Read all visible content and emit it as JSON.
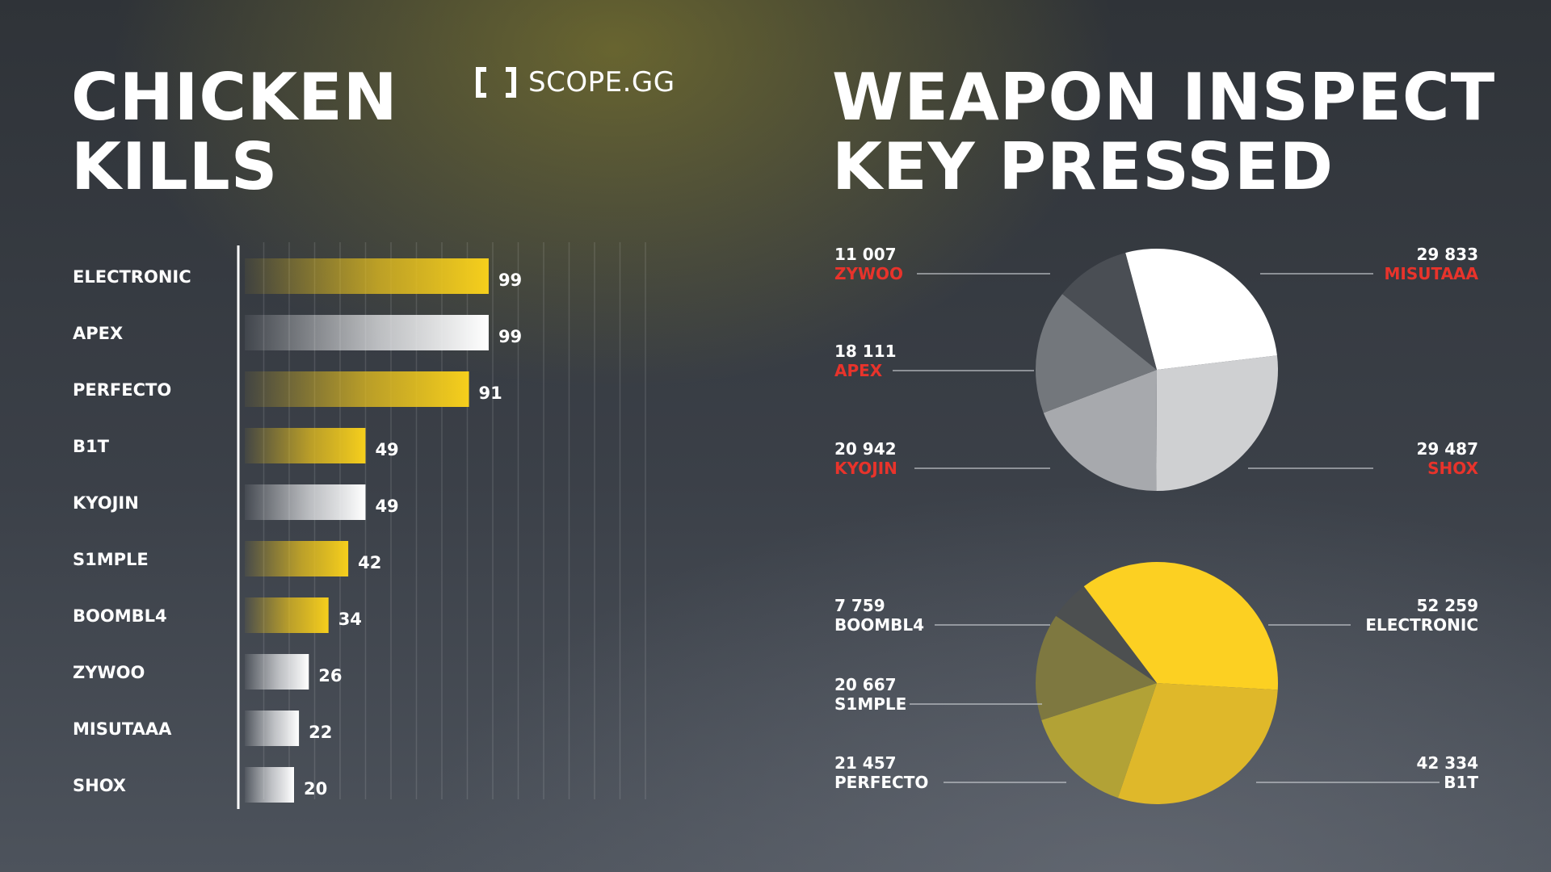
{
  "brand": {
    "name": "SCOPE.GG",
    "icon": "bracket-scope-icon"
  },
  "colors": {
    "yellow": "#f2c919",
    "white": "#ffffff",
    "red": "#e8332b",
    "grey": "#9ca0a6",
    "dark": "#41454b"
  },
  "chart_data": [
    {
      "type": "bar",
      "title": "CHICKEN KILLS",
      "categories": [
        "ELECTRONIC",
        "APEX",
        "PERFECTO",
        "B1T",
        "KYOJIN",
        "S1MPLE",
        "BOOMBL4",
        "ZYWOO",
        "MISUTAAA",
        "SHOX"
      ],
      "values": [
        99,
        99,
        91,
        49,
        49,
        42,
        34,
        26,
        22,
        20
      ],
      "value_labels": [
        "99",
        "99",
        "91",
        "49",
        "49",
        "42",
        "34",
        "26",
        "22",
        "20"
      ],
      "colors": [
        "yellow",
        "white",
        "yellow",
        "yellow",
        "white",
        "yellow",
        "yellow",
        "white",
        "white",
        "white"
      ],
      "xlim": [
        0,
        170
      ],
      "grid": true,
      "orientation": "horizontal"
    },
    {
      "type": "pie",
      "title": "WEAPON INSPECT KEY PRESSED",
      "group": "top",
      "slices": [
        {
          "name": "MISUTAAA",
          "value": 29833,
          "label": "29 833",
          "color": "#ffffff"
        },
        {
          "name": "SHOX",
          "value": 29487,
          "label": "29 487",
          "color": "#cfd0d2"
        },
        {
          "name": "KYOJIN",
          "value": 20942,
          "label": "20 942",
          "color": "#a7a9ad"
        },
        {
          "name": "APEX",
          "value": 18111,
          "label": "18 111",
          "color": "#73777c"
        },
        {
          "name": "ZYWOO",
          "value": 11007,
          "label": "11 007",
          "color": "#4a4e54"
        }
      ]
    },
    {
      "type": "pie",
      "group": "bottom",
      "slices": [
        {
          "name": "ELECTRONIC",
          "value": 52259,
          "label": "52 259",
          "color": "#fcd022"
        },
        {
          "name": "B1T",
          "value": 42334,
          "label": "42 334",
          "color": "#dfb82a"
        },
        {
          "name": "PERFECTO",
          "value": 21457,
          "label": "21 457",
          "color": "#b2a236"
        },
        {
          "name": "S1MPLE",
          "value": 20667,
          "label": "20 667",
          "color": "#7e7840"
        },
        {
          "name": "BOOMBL4",
          "value": 7759,
          "label": "7 759",
          "color": "#4c4f50"
        }
      ]
    }
  ]
}
